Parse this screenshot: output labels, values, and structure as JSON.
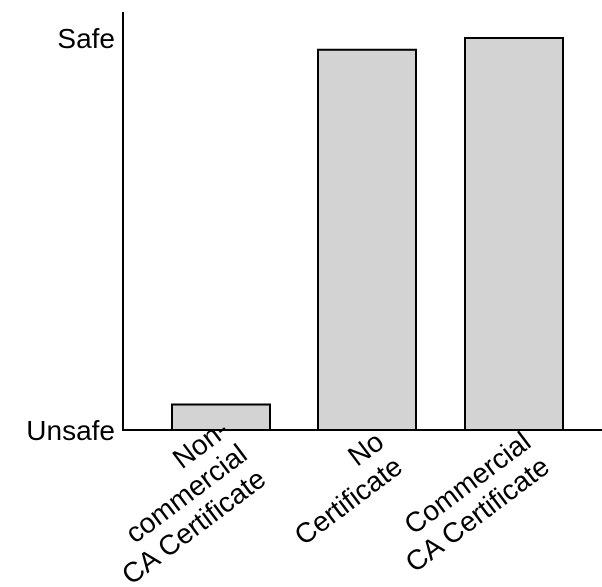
{
  "chart_data": {
    "type": "bar",
    "title": "",
    "xlabel": "",
    "ylabel": "",
    "ylim": [
      0,
      100
    ],
    "yticks": [
      {
        "value": 0,
        "label": "Unsafe"
      },
      {
        "value": 100,
        "label": "Safe"
      }
    ],
    "categories": [
      {
        "lines": [
          "Non-",
          "commercial",
          "CA Certificate"
        ]
      },
      {
        "lines": [
          "No",
          "Certificate"
        ]
      },
      {
        "lines": [
          "Commercial",
          "CA Certificate"
        ]
      }
    ],
    "values": [
      6.5,
      97,
      100
    ],
    "bar_color": "#d3d3d3",
    "bar_edge_color": "#000000",
    "grid": false,
    "legend": "none"
  }
}
